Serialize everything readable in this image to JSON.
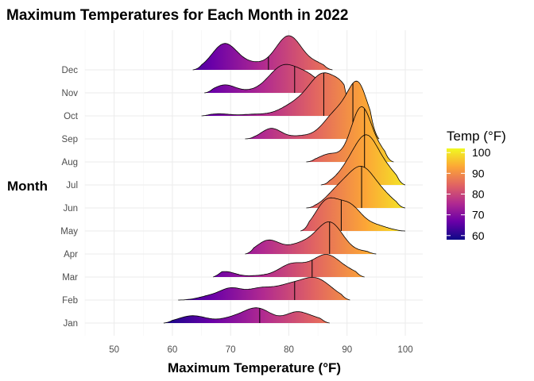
{
  "chart_data": {
    "type": "ridgeline",
    "title": "Maximum Temperatures for Each Month in 2022",
    "xlabel": "Maximum Temperature (°F)",
    "ylabel": "Month",
    "xlim": [
      45,
      103
    ],
    "x_ticks": [
      50,
      60,
      70,
      80,
      90,
      100
    ],
    "grid": true,
    "fill": "gradient by temperature (plasma)",
    "legend": {
      "title": "Temp (°F)",
      "position": "right",
      "ticks": [
        60,
        70,
        80,
        90,
        100
      ],
      "range": [
        58,
        102
      ],
      "colors": [
        "#0d0887",
        "#6a00a8",
        "#b12a90",
        "#e16462",
        "#fca636",
        "#f0f921"
      ]
    },
    "series": [
      {
        "month": "Jan",
        "min": 58.5,
        "max": 87,
        "median": 75,
        "peaks": [
          [
            63.5,
            0.28,
            2.5
          ],
          [
            70,
            0.15,
            2.0
          ],
          [
            74.5,
            0.57,
            2.4
          ],
          [
            81.5,
            0.42,
            2.0
          ],
          [
            85,
            0.12,
            1.5
          ]
        ]
      },
      {
        "month": "Feb",
        "min": 61,
        "max": 90.5,
        "median": 81,
        "peaks": [
          [
            66,
            0.12,
            1.8
          ],
          [
            70,
            0.43,
            2.0
          ],
          [
            75,
            0.4,
            2.2
          ],
          [
            79.5,
            0.4,
            2.3
          ],
          [
            84.5,
            0.82,
            2.8
          ]
        ]
      },
      {
        "month": "Mar",
        "min": 67,
        "max": 93,
        "median": 84,
        "peaks": [
          [
            69,
            0.21,
            1.8
          ],
          [
            75,
            0.05,
            2.0
          ],
          [
            80.5,
            0.48,
            2.2
          ],
          [
            86.5,
            0.85,
            2.5
          ],
          [
            91,
            0.1,
            1.5
          ]
        ]
      },
      {
        "month": "Apr",
        "min": 72.5,
        "max": 95,
        "median": 87,
        "peaks": [
          [
            76.5,
            0.52,
            2.0
          ],
          [
            82,
            0.35,
            2.2
          ],
          [
            87,
            1.2,
            2.3
          ],
          [
            93,
            0.08,
            1.5
          ]
        ]
      },
      {
        "month": "May",
        "min": 82,
        "max": 100,
        "median": 89,
        "peaks": [
          [
            86.5,
            1.1,
            2.0
          ],
          [
            90.5,
            0.9,
            2.0
          ],
          [
            95,
            0.2,
            2.0
          ]
        ]
      },
      {
        "month": "Jun",
        "min": 83,
        "max": 100,
        "median": 92.5,
        "peaks": [
          [
            88,
            0.45,
            2.0
          ],
          [
            92.5,
            1.55,
            2.6
          ],
          [
            97,
            0.2,
            1.6
          ]
        ]
      },
      {
        "month": "Jul",
        "min": 85.5,
        "max": 100,
        "median": 93,
        "peaks": [
          [
            90,
            0.45,
            2.0
          ],
          [
            93.5,
            1.8,
            2.2
          ],
          [
            97.5,
            0.3,
            1.5
          ]
        ]
      },
      {
        "month": "Aug",
        "min": 83,
        "max": 98,
        "median": 93,
        "peaks": [
          [
            87,
            0.3,
            1.8
          ],
          [
            92.5,
            2.1,
            1.8
          ],
          [
            96,
            0.25,
            1.2
          ]
        ]
      },
      {
        "month": "Sep",
        "min": 72.5,
        "max": 95.5,
        "median": 91,
        "peaks": [
          [
            77,
            0.4,
            1.7
          ],
          [
            82,
            0.1,
            2.0
          ],
          [
            88.5,
            1.05,
            2.4
          ],
          [
            92,
            1.8,
            1.7
          ],
          [
            95,
            0.15,
            1.0
          ]
        ]
      },
      {
        "month": "Oct",
        "min": 65,
        "max": 91,
        "median": 86,
        "peaks": [
          [
            68,
            0.08,
            1.8
          ],
          [
            74,
            0.06,
            2.2
          ],
          [
            81,
            0.4,
            2.5
          ],
          [
            86,
            1.55,
            2.5
          ],
          [
            89.5,
            0.6,
            1.5
          ]
        ]
      },
      {
        "month": "Nov",
        "min": 65.5,
        "max": 87.5,
        "median": 81,
        "peaks": [
          [
            69,
            0.3,
            1.8
          ],
          [
            73,
            0.05,
            2.0
          ],
          [
            79,
            1.0,
            2.5
          ],
          [
            83.5,
            0.55,
            2.2
          ]
        ]
      },
      {
        "month": "Dec",
        "min": 63.5,
        "max": 87.5,
        "median": 76.5,
        "peaks": [
          [
            69,
            1.0,
            2.2
          ],
          [
            74,
            0.2,
            2.0
          ],
          [
            80,
            1.3,
            2.3
          ],
          [
            85,
            0.18,
            1.5
          ]
        ]
      }
    ]
  }
}
